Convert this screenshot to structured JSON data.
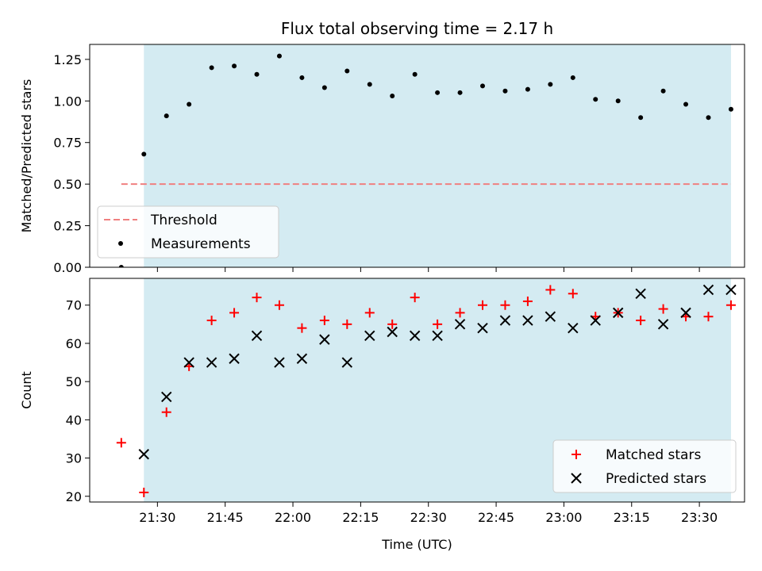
{
  "chart_data": [
    {
      "type": "scatter",
      "title": "Flux total observing time = 2.17 h",
      "xlabel": "",
      "ylabel": "Matched/Predicted stars",
      "ylim": [
        0,
        1.34
      ],
      "yticks": [
        "0.00",
        "0.25",
        "0.50",
        "0.75",
        "1.00",
        "1.25"
      ],
      "ytick_values": [
        0,
        0.25,
        0.5,
        0.75,
        1.0,
        1.25
      ],
      "shaded_span": [
        "21:27",
        "23:37"
      ],
      "shade_color": "#d4ebf2",
      "legend_position": "lower-left",
      "threshold": {
        "name": "Threshold",
        "value": 0.5,
        "x_start": "21:22",
        "x_end": "23:37",
        "color": "#f08080"
      },
      "series": [
        {
          "name": "Measurements",
          "color": "#000000",
          "x": [
            "21:22",
            "21:27",
            "21:32",
            "21:37",
            "21:42",
            "21:47",
            "21:52",
            "21:57",
            "22:02",
            "22:07",
            "22:12",
            "22:17",
            "22:22",
            "22:27",
            "22:32",
            "22:37",
            "22:42",
            "22:47",
            "22:52",
            "22:57",
            "23:02",
            "23:07",
            "23:12",
            "23:17",
            "23:22",
            "23:27",
            "23:32",
            "23:37"
          ],
          "y": [
            0.0,
            0.68,
            0.91,
            0.98,
            1.2,
            1.21,
            1.16,
            1.27,
            1.14,
            1.08,
            1.18,
            1.1,
            1.03,
            1.16,
            1.05,
            1.05,
            1.09,
            1.06,
            1.07,
            1.1,
            1.14,
            1.01,
            1.0,
            0.9,
            1.06,
            0.98,
            0.9,
            0.95
          ]
        }
      ]
    },
    {
      "type": "scatter",
      "title": "",
      "xlabel": "Time (UTC)",
      "ylabel": "Count",
      "ylim": [
        18.5,
        77
      ],
      "yticks": [
        "20",
        "30",
        "40",
        "50",
        "60",
        "70"
      ],
      "ytick_values": [
        20,
        30,
        40,
        50,
        60,
        70
      ],
      "xticks": [
        "21:30",
        "21:45",
        "22:00",
        "22:15",
        "22:30",
        "22:45",
        "23:00",
        "23:15",
        "23:30"
      ],
      "xlim": [
        "21:15",
        "23:40"
      ],
      "shaded_span": [
        "21:27",
        "23:37"
      ],
      "shade_color": "#d4ebf2",
      "legend_position": "lower-right",
      "x": [
        "21:22",
        "21:27",
        "21:32",
        "21:37",
        "21:42",
        "21:47",
        "21:52",
        "21:57",
        "22:02",
        "22:07",
        "22:12",
        "22:17",
        "22:22",
        "22:27",
        "22:32",
        "22:37",
        "22:42",
        "22:47",
        "22:52",
        "22:57",
        "23:02",
        "23:07",
        "23:12",
        "23:17",
        "23:22",
        "23:27",
        "23:32",
        "23:37"
      ],
      "series": [
        {
          "name": "Matched stars",
          "marker": "plus",
          "color": "#ff0000",
          "values": [
            34,
            21,
            42,
            54,
            66,
            68,
            72,
            70,
            64,
            66,
            65,
            68,
            65,
            72,
            65,
            68,
            70,
            70,
            71,
            74,
            73,
            67,
            68,
            66,
            69,
            67,
            67,
            70
          ]
        },
        {
          "name": "Predicted stars",
          "marker": "x",
          "color": "#000000",
          "values": [
            null,
            31,
            46,
            55,
            55,
            56,
            62,
            55,
            56,
            61,
            55,
            62,
            63,
            62,
            62,
            65,
            64,
            66,
            66,
            67,
            64,
            66,
            68,
            73,
            65,
            68,
            74,
            74
          ]
        }
      ]
    }
  ]
}
